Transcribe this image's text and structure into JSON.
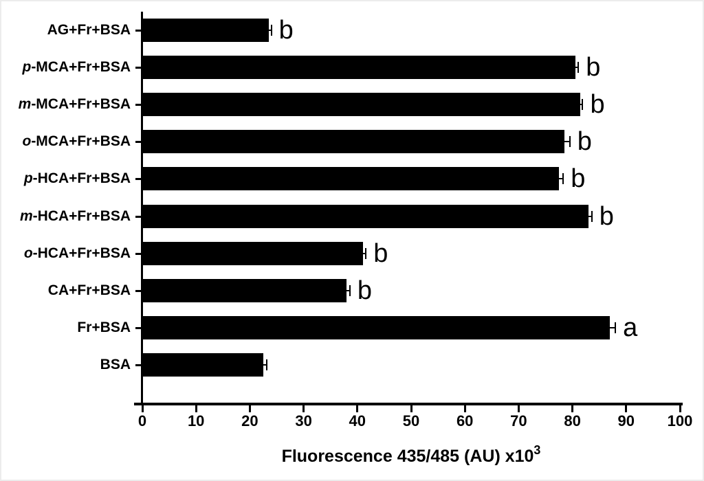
{
  "figure": {
    "background": "#ffffff",
    "bar_color": "#000000",
    "axis_color": "#000000",
    "text_color": "#000000"
  },
  "chart_data": {
    "type": "bar",
    "orientation": "horizontal",
    "title": "",
    "xlabel": "Fluorescence 435/485 (AU) x10^3",
    "xlabel_main": "Fluorescence 435/485 (AU) x10",
    "xlabel_superscript": "3",
    "xlim": [
      0,
      100
    ],
    "xticks": [
      0,
      10,
      20,
      30,
      40,
      50,
      60,
      70,
      80,
      90,
      100
    ],
    "grid": false,
    "legend": false,
    "error_bars": true,
    "categories": [
      "AG+Fr+BSA",
      "p-MCA+Fr+BSA",
      "m-MCA+Fr+BSA",
      "o-MCA+Fr+BSA",
      "p-HCA+Fr+BSA",
      "m-HCA+Fr+BSA",
      "o-HCA+Fr+BSA",
      "CA+Fr+BSA",
      "Fr+BSA",
      "BSA"
    ],
    "values": [
      23.5,
      80.5,
      81.5,
      78.5,
      77.5,
      83,
      41,
      38,
      87,
      22.5
    ],
    "errors": [
      0.5,
      0.6,
      0.4,
      1.0,
      0.8,
      0.6,
      0.6,
      0.6,
      1.0,
      0.7
    ],
    "sig_letters": [
      "b",
      "b",
      "b",
      "b",
      "b",
      "b",
      "b",
      "b",
      "a",
      ""
    ],
    "bars_top_to_bottom": [
      {
        "label": "AG+Fr+BSA",
        "italic_prefix": "",
        "label_rest": "AG+Fr+BSA",
        "value": 23.5,
        "error": 0.5,
        "sig_letter": "b"
      },
      {
        "label": "p-MCA+Fr+BSA",
        "italic_prefix": "p",
        "label_rest": "-MCA+Fr+BSA",
        "value": 80.5,
        "error": 0.6,
        "sig_letter": "b"
      },
      {
        "label": "m-MCA+Fr+BSA",
        "italic_prefix": "m",
        "label_rest": "-MCA+Fr+BSA",
        "value": 81.5,
        "error": 0.4,
        "sig_letter": "b"
      },
      {
        "label": "o-MCA+Fr+BSA",
        "italic_prefix": "o",
        "label_rest": "-MCA+Fr+BSA",
        "value": 78.5,
        "error": 1.0,
        "sig_letter": "b"
      },
      {
        "label": "p-HCA+Fr+BSA",
        "italic_prefix": "p",
        "label_rest": "-HCA+Fr+BSA",
        "value": 77.5,
        "error": 0.8,
        "sig_letter": "b"
      },
      {
        "label": "m-HCA+Fr+BSA",
        "italic_prefix": "m",
        "label_rest": "-HCA+Fr+BSA",
        "value": 83,
        "error": 0.6,
        "sig_letter": "b"
      },
      {
        "label": "o-HCA+Fr+BSA",
        "italic_prefix": "o",
        "label_rest": "-HCA+Fr+BSA",
        "value": 41,
        "error": 0.6,
        "sig_letter": "b"
      },
      {
        "label": "CA+Fr+BSA",
        "italic_prefix": "",
        "label_rest": "CA+Fr+BSA",
        "value": 38,
        "error": 0.6,
        "sig_letter": "b"
      },
      {
        "label": "Fr+BSA",
        "italic_prefix": "",
        "label_rest": "Fr+BSA",
        "value": 87,
        "error": 1.0,
        "sig_letter": "a"
      },
      {
        "label": "BSA",
        "italic_prefix": "",
        "label_rest": "BSA",
        "value": 22.5,
        "error": 0.7,
        "sig_letter": ""
      }
    ]
  }
}
